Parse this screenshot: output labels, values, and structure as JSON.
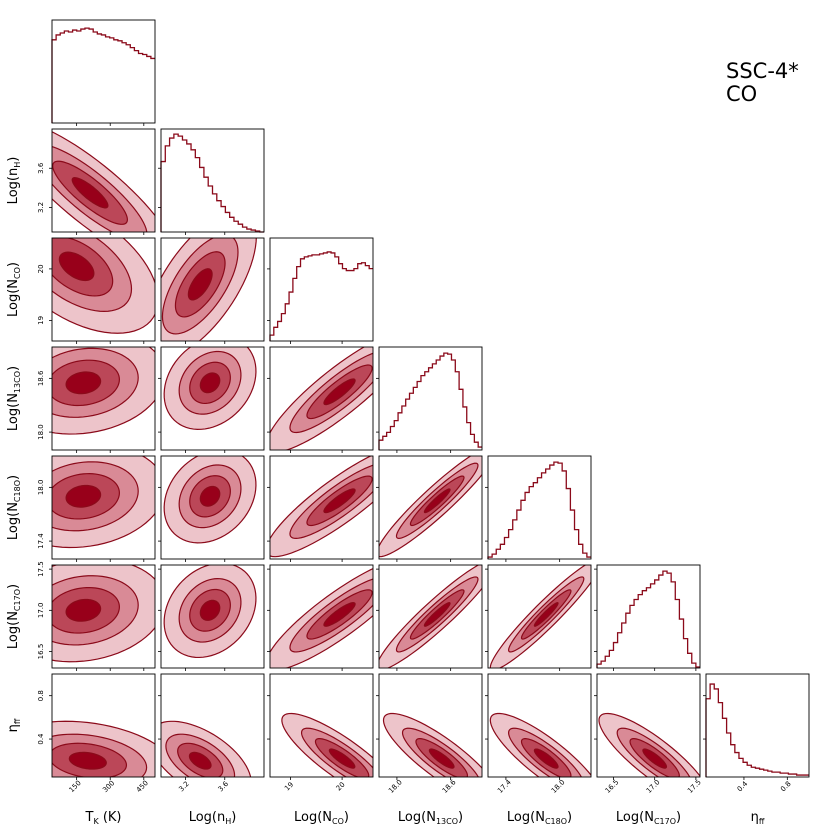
{
  "chart_data": {
    "type": "corner",
    "title_lines": [
      "SSC-4*",
      "CO"
    ],
    "colors": {
      "line": "#8b0a1a",
      "level1": "#edc4ca",
      "level2": "#d98a96",
      "level3": "#bb4758",
      "level4": "#98001a",
      "axes": "#000000"
    },
    "parameters": [
      {
        "key": "tk",
        "xlabel": "T",
        "xlabel_sub": "K",
        "xlabel_suffix": " (K)",
        "ylabel": "",
        "range": [
          40,
          500
        ],
        "ticks": [
          {
            "v": 150,
            "label": "150"
          },
          {
            "v": 300,
            "label": "300"
          },
          {
            "v": 450,
            "label": "450"
          }
        ]
      },
      {
        "key": "nh",
        "xlabel": "Log(n",
        "xlabel_sub": "H",
        "xlabel_suffix": ")",
        "ylabel": "Log(n",
        "ylabel_sub": "H",
        "ylabel_suffix": ")",
        "range": [
          2.95,
          4.0
        ],
        "ticks": [
          {
            "v": 3.2,
            "label": "3.2"
          },
          {
            "v": 3.6,
            "label": "3.6"
          }
        ]
      },
      {
        "key": "nco",
        "xlabel": "Log(N",
        "xlabel_sub": "CO",
        "xlabel_suffix": ")",
        "ylabel": "Log(N",
        "ylabel_sub": "CO",
        "ylabel_suffix": ")",
        "range": [
          18.6,
          20.6
        ],
        "ticks": [
          {
            "v": 19,
            "label": "19"
          },
          {
            "v": 20,
            "label": "20"
          }
        ]
      },
      {
        "key": "n13co",
        "xlabel": "Log(N",
        "xlabel_sub": "13CO",
        "xlabel_suffix": ")",
        "ylabel": "Log(N",
        "ylabel_sub": "13CO",
        "ylabel_suffix": ")",
        "range": [
          17.8,
          18.95
        ],
        "ticks": [
          {
            "v": 18.0,
            "label": "18.0"
          },
          {
            "v": 18.6,
            "label": "18.6"
          }
        ]
      },
      {
        "key": "nc18o",
        "xlabel": "Log(N",
        "xlabel_sub": "C18O",
        "xlabel_suffix": ")",
        "ylabel": "Log(N",
        "ylabel_sub": "C18O",
        "ylabel_suffix": ")",
        "range": [
          17.2,
          18.35
        ],
        "ticks": [
          {
            "v": 17.4,
            "label": "17.4"
          },
          {
            "v": 18.0,
            "label": "18.0"
          }
        ]
      },
      {
        "key": "nc17o",
        "xlabel": "Log(N",
        "xlabel_sub": "C17O",
        "xlabel_suffix": ")",
        "ylabel": "Log(N",
        "ylabel_sub": "C17O",
        "ylabel_suffix": ")",
        "range": [
          16.3,
          17.55
        ],
        "ticks": [
          {
            "v": 16.5,
            "label": "16.5"
          },
          {
            "v": 17.0,
            "label": "17.0"
          },
          {
            "v": 17.5,
            "label": "17.5"
          }
        ]
      },
      {
        "key": "eta",
        "xlabel": "η",
        "xlabel_sub": "ff",
        "xlabel_suffix": "",
        "ylabel": "η",
        "ylabel_sub": "ff",
        "ylabel_suffix": "",
        "range": [
          0.05,
          1.0
        ],
        "ticks": [
          {
            "v": 0.4,
            "label": "0.4"
          },
          {
            "v": 0.8,
            "label": "0.8"
          }
        ]
      }
    ],
    "histograms": {
      "tk": [
        0.85,
        0.9,
        0.92,
        0.94,
        0.93,
        0.95,
        0.94,
        0.96,
        0.97,
        0.96,
        0.93,
        0.91,
        0.9,
        0.88,
        0.87,
        0.85,
        0.84,
        0.82,
        0.8,
        0.77,
        0.74,
        0.71,
        0.7,
        0.68,
        0.66
      ],
      "nh": [
        0.72,
        0.88,
        0.96,
        1.0,
        0.98,
        0.94,
        0.9,
        0.84,
        0.76,
        0.66,
        0.56,
        0.47,
        0.39,
        0.32,
        0.26,
        0.2,
        0.15,
        0.11,
        0.08,
        0.05,
        0.03,
        0.02,
        0.01,
        0.0
      ],
      "nco": [
        0.06,
        0.14,
        0.2,
        0.28,
        0.38,
        0.5,
        0.64,
        0.76,
        0.84,
        0.86,
        0.87,
        0.88,
        0.88,
        0.89,
        0.9,
        0.91,
        0.9,
        0.86,
        0.79,
        0.74,
        0.72,
        0.72,
        0.74,
        0.79,
        0.8,
        0.77,
        0.74
      ],
      "n13co": [
        0.1,
        0.14,
        0.18,
        0.24,
        0.3,
        0.38,
        0.45,
        0.52,
        0.58,
        0.64,
        0.7,
        0.76,
        0.8,
        0.84,
        0.88,
        0.92,
        0.96,
        0.99,
        0.98,
        0.92,
        0.8,
        0.62,
        0.44,
        0.28,
        0.16,
        0.08,
        0.03
      ],
      "nc18o": [
        0.02,
        0.05,
        0.1,
        0.15,
        0.22,
        0.3,
        0.4,
        0.5,
        0.6,
        0.68,
        0.74,
        0.78,
        0.83,
        0.88,
        0.92,
        0.96,
        0.99,
        0.98,
        0.9,
        0.72,
        0.5,
        0.3,
        0.15,
        0.06,
        0.02
      ],
      "nc17o": [
        0.04,
        0.07,
        0.12,
        0.18,
        0.26,
        0.36,
        0.46,
        0.56,
        0.64,
        0.7,
        0.75,
        0.79,
        0.82,
        0.86,
        0.9,
        0.95,
        0.99,
        0.97,
        0.88,
        0.7,
        0.5,
        0.3,
        0.15,
        0.05,
        0.01
      ],
      "eta": [
        0.8,
        0.95,
        0.9,
        0.76,
        0.6,
        0.45,
        0.33,
        0.25,
        0.19,
        0.15,
        0.12,
        0.1,
        0.09,
        0.08,
        0.07,
        0.06,
        0.05,
        0.05,
        0.04,
        0.04,
        0.03,
        0.03,
        0.02,
        0.02,
        0.02
      ]
    },
    "pairs": [
      {
        "row": 1,
        "col": 0,
        "rho": -0.85,
        "cx": 210,
        "cy": 3.35,
        "sx": 145,
        "sy": 0.28
      },
      {
        "row": 2,
        "col": 0,
        "rho": -0.5,
        "cx": 150,
        "cy": 20.05,
        "sx": 140,
        "sy": 0.5
      },
      {
        "row": 2,
        "col": 1,
        "rho": 0.65,
        "cx": 3.35,
        "cy": 19.7,
        "sx": 0.22,
        "sy": 0.55
      },
      {
        "row": 3,
        "col": 0,
        "rho": 0.15,
        "cx": 180,
        "cy": 18.55,
        "sx": 140,
        "sy": 0.22
      },
      {
        "row": 3,
        "col": 1,
        "rho": 0.25,
        "cx": 3.45,
        "cy": 18.55,
        "sx": 0.18,
        "sy": 0.2
      },
      {
        "row": 3,
        "col": 2,
        "rho": 0.88,
        "cx": 19.95,
        "cy": 18.45,
        "sx": 0.55,
        "sy": 0.26
      },
      {
        "row": 4,
        "col": 0,
        "rho": 0.15,
        "cx": 180,
        "cy": 17.9,
        "sx": 140,
        "sy": 0.22
      },
      {
        "row": 4,
        "col": 1,
        "rho": 0.25,
        "cx": 3.45,
        "cy": 17.9,
        "sx": 0.18,
        "sy": 0.2
      },
      {
        "row": 4,
        "col": 2,
        "rho": 0.88,
        "cx": 19.95,
        "cy": 17.85,
        "sx": 0.55,
        "sy": 0.24
      },
      {
        "row": 4,
        "col": 3,
        "rho": 0.94,
        "cx": 18.45,
        "cy": 17.85,
        "sx": 0.26,
        "sy": 0.24
      },
      {
        "row": 5,
        "col": 0,
        "rho": 0.15,
        "cx": 180,
        "cy": 17.0,
        "sx": 140,
        "sy": 0.24
      },
      {
        "row": 5,
        "col": 1,
        "rho": 0.25,
        "cx": 3.45,
        "cy": 17.0,
        "sx": 0.18,
        "sy": 0.22
      },
      {
        "row": 5,
        "col": 2,
        "rho": 0.88,
        "cx": 19.95,
        "cy": 16.95,
        "sx": 0.55,
        "sy": 0.26
      },
      {
        "row": 5,
        "col": 3,
        "rho": 0.94,
        "cx": 18.45,
        "cy": 16.95,
        "sx": 0.26,
        "sy": 0.26
      },
      {
        "row": 5,
        "col": 4,
        "rho": 0.95,
        "cx": 17.85,
        "cy": 16.95,
        "sx": 0.24,
        "sy": 0.26
      },
      {
        "row": 6,
        "col": 0,
        "rho": -0.25,
        "cx": 200,
        "cy": 0.2,
        "sx": 150,
        "sy": 0.14
      },
      {
        "row": 6,
        "col": 1,
        "rho": -0.55,
        "cx": 3.35,
        "cy": 0.2,
        "sx": 0.2,
        "sy": 0.14
      },
      {
        "row": 6,
        "col": 2,
        "rho": -0.85,
        "cx": 20.0,
        "cy": 0.22,
        "sx": 0.45,
        "sy": 0.16
      },
      {
        "row": 6,
        "col": 3,
        "rho": -0.85,
        "cx": 18.5,
        "cy": 0.22,
        "sx": 0.25,
        "sy": 0.16
      },
      {
        "row": 6,
        "col": 4,
        "rho": -0.85,
        "cx": 17.85,
        "cy": 0.22,
        "sx": 0.24,
        "sy": 0.16
      },
      {
        "row": 6,
        "col": 5,
        "rho": -0.85,
        "cx": 17.0,
        "cy": 0.22,
        "sx": 0.26,
        "sy": 0.16
      }
    ]
  }
}
